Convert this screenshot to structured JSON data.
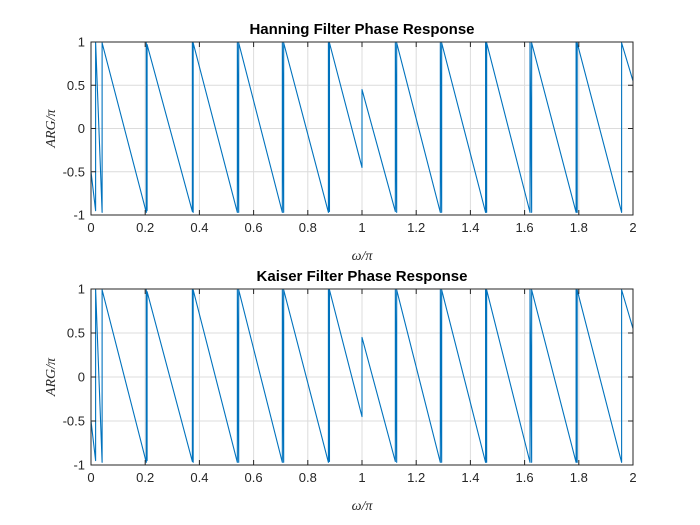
{
  "chart_data": [
    {
      "type": "line",
      "title": "Hanning Filter Phase Response",
      "xlabel": "ω/π",
      "ylabel": "ARG/π",
      "xlim": [
        0,
        2
      ],
      "ylim": [
        -1,
        1
      ],
      "xticks": [
        "0",
        "0.2",
        "0.4",
        "0.6",
        "0.8",
        "1",
        "1.2",
        "1.4",
        "1.6",
        "1.8",
        "2"
      ],
      "yticks": [
        "-1",
        "-0.5",
        "0",
        "0.5",
        "1"
      ],
      "grid": true,
      "series": [
        {
          "color": "#0072BD",
          "x": [
            0.0,
            0.0,
            0.017,
            0.017,
            0.041,
            0.041,
            0.204,
            0.204,
            0.207,
            0.207,
            0.374,
            0.374,
            0.377,
            0.377,
            0.54,
            0.54,
            0.545,
            0.545,
            0.706,
            0.706,
            0.711,
            0.711,
            0.876,
            0.876,
            0.88,
            0.88,
            1.0,
            1.0,
            1.123,
            1.123,
            1.128,
            1.128,
            1.289,
            1.289,
            1.294,
            1.294,
            1.456,
            1.456,
            1.46,
            1.46,
            1.62,
            1.62,
            1.626,
            1.626,
            1.79,
            1.79,
            1.794,
            1.794,
            1.958,
            1.958,
            2.0
          ],
          "y": [
            -0.5,
            -0.5,
            -0.95,
            1.0,
            -0.97,
            0.99,
            -0.97,
            0.99,
            -0.95,
            0.97,
            -0.96,
            0.99,
            -0.97,
            0.99,
            -0.97,
            0.99,
            -0.97,
            0.99,
            -0.97,
            0.99,
            -0.97,
            0.99,
            -0.97,
            0.99,
            -0.96,
            0.99,
            -0.45,
            0.45,
            -0.96,
            0.99,
            -0.97,
            0.99,
            -0.97,
            0.99,
            -0.97,
            0.99,
            -0.97,
            0.99,
            -0.97,
            0.99,
            -0.97,
            0.99,
            -0.97,
            0.99,
            -0.97,
            0.99,
            -0.97,
            0.99,
            -0.97,
            0.99,
            0.55
          ]
        }
      ]
    },
    {
      "type": "line",
      "title": "Kaiser Filter Phase Response",
      "xlabel": "ω/π",
      "ylabel": "ARG/π",
      "xlim": [
        0,
        2
      ],
      "ylim": [
        -1,
        1
      ],
      "xticks": [
        "0",
        "0.2",
        "0.4",
        "0.6",
        "0.8",
        "1",
        "1.2",
        "1.4",
        "1.6",
        "1.8",
        "2"
      ],
      "yticks": [
        "-1",
        "-0.5",
        "0",
        "0.5",
        "1"
      ],
      "grid": true,
      "series": [
        {
          "color": "#0072BD",
          "x": [
            0.0,
            0.0,
            0.017,
            0.017,
            0.041,
            0.041,
            0.204,
            0.204,
            0.207,
            0.207,
            0.374,
            0.374,
            0.377,
            0.377,
            0.54,
            0.54,
            0.545,
            0.545,
            0.706,
            0.706,
            0.711,
            0.711,
            0.876,
            0.876,
            0.88,
            0.88,
            1.0,
            1.0,
            1.123,
            1.123,
            1.128,
            1.128,
            1.289,
            1.289,
            1.294,
            1.294,
            1.456,
            1.456,
            1.46,
            1.46,
            1.62,
            1.62,
            1.626,
            1.626,
            1.79,
            1.79,
            1.794,
            1.794,
            1.958,
            1.958,
            2.0
          ],
          "y": [
            -0.5,
            -0.5,
            -0.95,
            1.0,
            -0.97,
            0.99,
            -0.97,
            0.99,
            -0.95,
            0.97,
            -0.96,
            0.99,
            -0.97,
            0.99,
            -0.97,
            0.99,
            -0.97,
            0.99,
            -0.97,
            0.99,
            -0.97,
            0.99,
            -0.97,
            0.99,
            -0.96,
            0.99,
            -0.45,
            0.45,
            -0.96,
            0.99,
            -0.97,
            0.99,
            -0.97,
            0.99,
            -0.97,
            0.99,
            -0.97,
            0.99,
            -0.97,
            0.99,
            -0.97,
            0.99,
            -0.97,
            0.99,
            -0.97,
            0.99,
            -0.97,
            0.99,
            -0.97,
            0.99,
            0.55
          ]
        }
      ]
    }
  ]
}
